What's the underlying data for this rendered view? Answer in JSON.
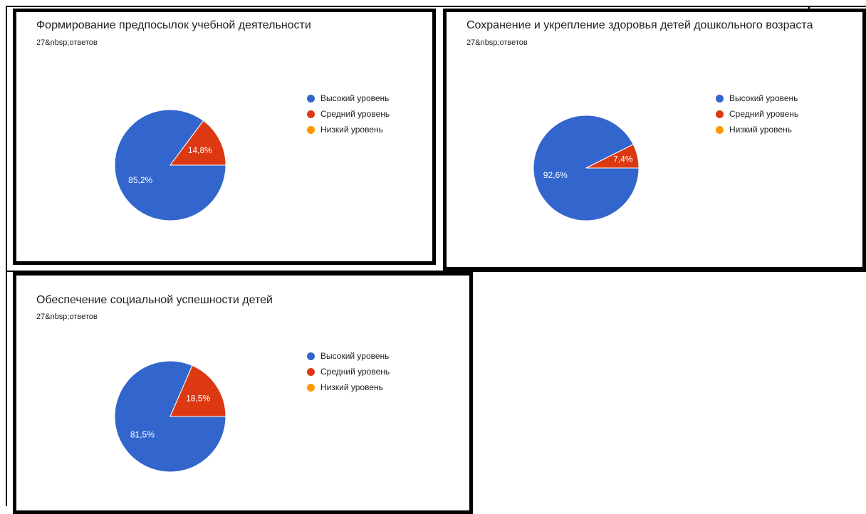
{
  "colors": {
    "high": "#3366cc",
    "medium": "#dc3912",
    "low": "#ff9900"
  },
  "chart_data": [
    {
      "type": "pie",
      "title": "Формирование предпосылок учебной деятельности",
      "subtitle": "27&nbsp;ответов",
      "categories": [
        "Высокий уровень",
        "Средний уровень",
        "Низкий уровень"
      ],
      "values": [
        85.2,
        14.8,
        0
      ],
      "labels": [
        "85,2%",
        "14,8%",
        ""
      ]
    },
    {
      "type": "pie",
      "title": "Сохранение и укрепление здоровья детей дошкольного возраста",
      "subtitle": "27&nbsp;ответов",
      "categories": [
        "Высокий уровень",
        "Средний уровень",
        "Низкий уровень"
      ],
      "values": [
        92.6,
        7.4,
        0
      ],
      "labels": [
        "92,6%",
        "7,4%",
        ""
      ]
    },
    {
      "type": "pie",
      "title": "Обеспечение социальной успешности детей",
      "subtitle": "27&nbsp;ответов",
      "categories": [
        "Высокий уровень",
        "Средний уровень",
        "Низкий уровень"
      ],
      "values": [
        81.5,
        18.5,
        0
      ],
      "labels": [
        "81,5%",
        "18,5%",
        ""
      ]
    }
  ]
}
